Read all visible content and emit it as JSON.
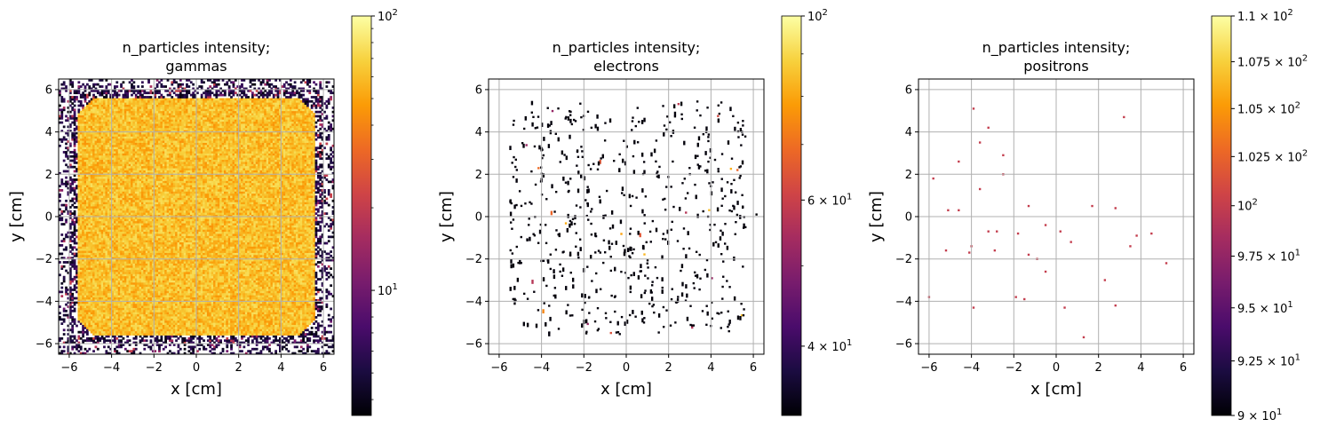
{
  "colors": {
    "inferno": [
      "#000004",
      "#1b0c41",
      "#4a0c6b",
      "#781c6d",
      "#a52c60",
      "#cf4446",
      "#ed6925",
      "#fb9b06",
      "#f7d13d",
      "#fcffa4"
    ],
    "grid": "#b0b0b0",
    "axes": "#000000"
  },
  "chart_data": [
    {
      "type": "heatmap",
      "title_line1": "n_particles intensity;",
      "title_line2": "gammas",
      "xlabel": "x [cm]",
      "ylabel": "y [cm]",
      "xlim": [
        -6.5,
        6.5
      ],
      "ylim": [
        -6.5,
        6.5
      ],
      "xticks": [
        "−6",
        "−4",
        "−2",
        "0",
        "2",
        "4",
        "6"
      ],
      "yticks": [
        "−6",
        "−4",
        "−2",
        "0",
        "2",
        "4",
        "6"
      ],
      "grid": true,
      "colorbar": {
        "scale": "log",
        "min": 3.5,
        "max": 100,
        "ticks": [
          {
            "base": "10",
            "exp": "1",
            "value": 10
          },
          {
            "base": "10",
            "exp": "2",
            "value": 100
          }
        ]
      },
      "bins": 130,
      "region": {
        "shape": "rounded-square",
        "half_width": 5.6,
        "corner_cut": 0.7,
        "scatter_to": 6.5
      },
      "typical_intensity": 60
    },
    {
      "type": "heatmap",
      "title_line1": "n_particles intensity;",
      "title_line2": "electrons",
      "xlabel": "x [cm]",
      "ylabel": "y [cm]",
      "xlim": [
        -6.5,
        6.5
      ],
      "ylim": [
        -6.5,
        6.5
      ],
      "xticks": [
        "−6",
        "−4",
        "−2",
        "0",
        "2",
        "4",
        "6"
      ],
      "yticks": [
        "−6",
        "−4",
        "−2",
        "0",
        "2",
        "4",
        "6"
      ],
      "grid": true,
      "colorbar": {
        "scale": "log",
        "min": 33,
        "max": 100,
        "ticks": [
          {
            "base": "4 × 10",
            "exp": "1",
            "value": 40
          },
          {
            "base": "6 × 10",
            "exp": "1",
            "value": 60
          },
          {
            "base": "10",
            "exp": "2",
            "value": 100
          }
        ]
      },
      "sparse_hits": 620,
      "bright_hits": 22
    },
    {
      "type": "scatter",
      "title_line1": "n_particles intensity;",
      "title_line2": "positrons",
      "xlabel": "x [cm]",
      "ylabel": "y [cm]",
      "xlim": [
        -6.5,
        6.5
      ],
      "ylim": [
        -6.5,
        6.5
      ],
      "xticks": [
        "−6",
        "−4",
        "−2",
        "0",
        "2",
        "4",
        "6"
      ],
      "yticks": [
        "−6",
        "−4",
        "−2",
        "0",
        "2",
        "4",
        "6"
      ],
      "grid": true,
      "colorbar": {
        "scale": "log",
        "min": 90,
        "max": 110,
        "ticks": [
          {
            "base": "9 × 10",
            "exp": "1",
            "value": 90
          },
          {
            "base": "9.25 × 10",
            "exp": "1",
            "value": 92.5
          },
          {
            "base": "9.5 × 10",
            "exp": "1",
            "value": 95
          },
          {
            "base": "9.75 × 10",
            "exp": "1",
            "value": 97.5
          },
          {
            "base": "10",
            "exp": "2",
            "value": 100
          },
          {
            "base": "1.025 × 10",
            "exp": "2",
            "value": 102.5
          },
          {
            "base": "1.05 × 10",
            "exp": "2",
            "value": 105
          },
          {
            "base": "1.075 × 10",
            "exp": "2",
            "value": 107.5
          },
          {
            "base": "1.1 × 10",
            "exp": "2",
            "value": 110
          }
        ]
      },
      "points": [
        [
          -5.8,
          1.8
        ],
        [
          -5.1,
          0.3
        ],
        [
          -4.6,
          2.6
        ],
        [
          -4.6,
          0.3
        ],
        [
          -4.1,
          -1.7
        ],
        [
          -4.0,
          -1.4
        ],
        [
          -3.9,
          5.1
        ],
        [
          -3.9,
          -4.3
        ],
        [
          -3.6,
          3.5
        ],
        [
          -3.6,
          1.3
        ],
        [
          -3.2,
          4.2
        ],
        [
          -3.2,
          -0.7
        ],
        [
          -2.9,
          -1.6
        ],
        [
          -2.8,
          -0.7
        ],
        [
          -2.5,
          2.9
        ],
        [
          -2.5,
          2.0
        ],
        [
          -1.9,
          -3.8
        ],
        [
          -1.8,
          -0.8
        ],
        [
          -1.5,
          -3.9
        ],
        [
          -1.3,
          0.5
        ],
        [
          -1.3,
          -1.8
        ],
        [
          -0.9,
          -2.0
        ],
        [
          -0.5,
          -0.4
        ],
        [
          -0.5,
          -2.6
        ],
        [
          0.2,
          -0.7
        ],
        [
          0.4,
          -4.3
        ],
        [
          0.7,
          -1.2
        ],
        [
          1.7,
          0.5
        ],
        [
          1.3,
          -5.7
        ],
        [
          2.3,
          -3.0
        ],
        [
          2.8,
          0.4
        ],
        [
          2.8,
          -4.2
        ],
        [
          3.2,
          4.7
        ],
        [
          3.5,
          -1.4
        ],
        [
          3.8,
          -0.9
        ],
        [
          4.5,
          -0.8
        ],
        [
          5.2,
          -2.2
        ],
        [
          -6.0,
          -3.8
        ],
        [
          -5.2,
          -1.6
        ]
      ]
    }
  ]
}
